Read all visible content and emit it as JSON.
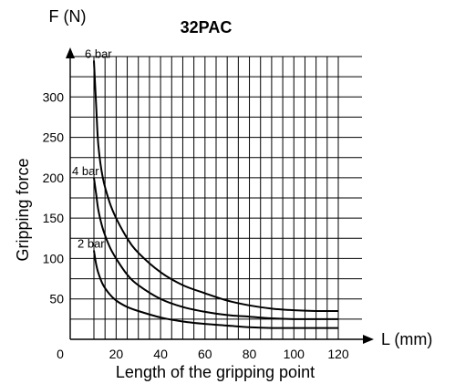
{
  "chart_data": {
    "type": "line",
    "title": "32PAC",
    "ylabel_unit": "F (N)",
    "ylabel": "Gripping force",
    "xlabel_unit": "L (mm)",
    "xlabel": "Length of the gripping point",
    "x_origin_label": "0",
    "xlim": [
      10,
      125
    ],
    "ylim": [
      0,
      360
    ],
    "x_ticks": [
      20,
      40,
      60,
      80,
      100,
      120
    ],
    "y_ticks": [
      50,
      100,
      150,
      200,
      250,
      300
    ],
    "x_grid": [
      10,
      15,
      20,
      25,
      30,
      35,
      40,
      45,
      50,
      55,
      60,
      65,
      70,
      75,
      80,
      85,
      90,
      95,
      100,
      105,
      110,
      115,
      120
    ],
    "y_grid": [
      25,
      50,
      75,
      100,
      125,
      150,
      175,
      200,
      225,
      250,
      275,
      300,
      325,
      350
    ],
    "grid": true,
    "series": [
      {
        "name": "6 bar",
        "x": [
          10,
          11,
          12,
          14,
          17,
          20,
          25,
          30,
          40,
          50,
          60,
          70,
          80,
          90,
          100,
          110,
          120
        ],
        "y": [
          345,
          290,
          240,
          200,
          170,
          150,
          125,
          107,
          83,
          67,
          57,
          48,
          42,
          38,
          36,
          35,
          35
        ]
      },
      {
        "name": "4 bar",
        "x": [
          10,
          11,
          12,
          14,
          17,
          20,
          25,
          30,
          40,
          50,
          60,
          70,
          80,
          90,
          100,
          110,
          120
        ],
        "y": [
          200,
          180,
          160,
          137,
          115,
          100,
          80,
          67,
          50,
          40,
          34,
          30,
          28,
          26,
          25,
          25,
          25
        ]
      },
      {
        "name": "2 bar",
        "x": [
          10,
          11,
          12,
          14,
          17,
          20,
          25,
          30,
          40,
          50,
          60,
          70,
          80,
          90,
          100,
          110,
          120
        ],
        "y": [
          110,
          93,
          82,
          68,
          56,
          48,
          40,
          35,
          27,
          22,
          19,
          17,
          15,
          14,
          14,
          14,
          14
        ]
      }
    ]
  }
}
